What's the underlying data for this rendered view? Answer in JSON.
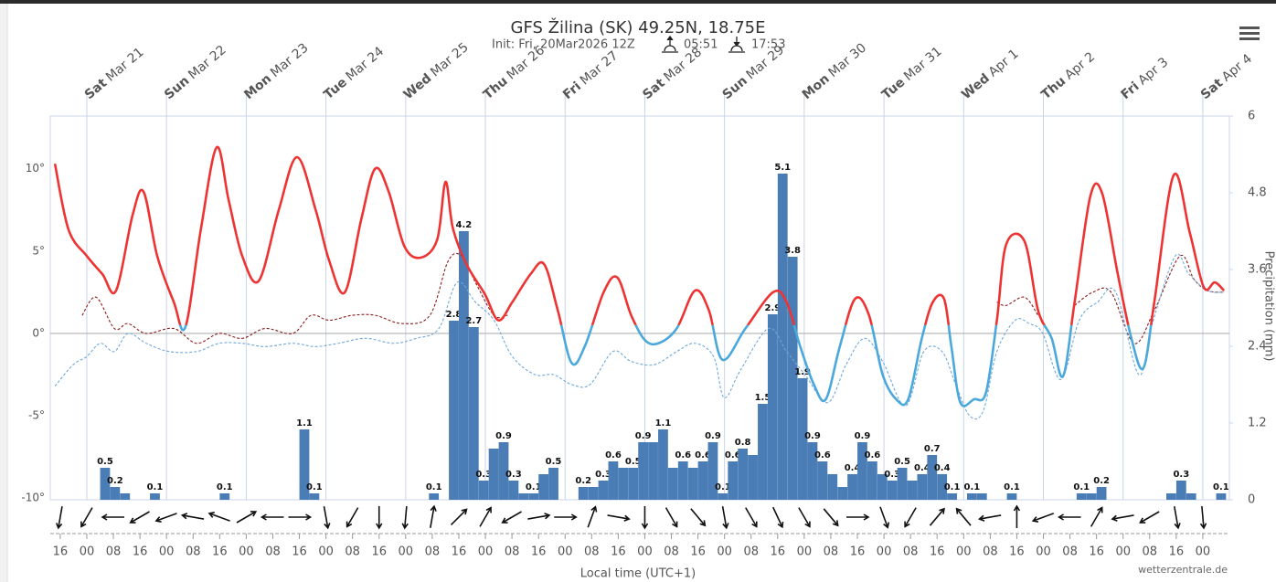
{
  "header": {
    "title": "GFS Žilina (SK) 49.25N, 18.75E",
    "init": "Init: Fri, 20Mar2026 12Z",
    "sunrise": "05:51",
    "sunset": "17:53"
  },
  "chart_data": {
    "type": "meteogram",
    "xlim": [
      -11,
      344
    ],
    "xticks": [
      {
        "value": -8,
        "label": "16"
      },
      {
        "value": 0,
        "label": "00"
      },
      {
        "value": 8,
        "label": "08"
      },
      {
        "value": 16,
        "label": "16"
      },
      {
        "value": 24,
        "label": "00"
      },
      {
        "value": 32,
        "label": "08"
      },
      {
        "value": 40,
        "label": "16"
      },
      {
        "value": 48,
        "label": "00"
      },
      {
        "value": 56,
        "label": "08"
      },
      {
        "value": 64,
        "label": "16"
      },
      {
        "value": 72,
        "label": "00"
      },
      {
        "value": 80,
        "label": "08"
      },
      {
        "value": 88,
        "label": "16"
      },
      {
        "value": 96,
        "label": "00"
      },
      {
        "value": 104,
        "label": "08"
      },
      {
        "value": 112,
        "label": "16"
      },
      {
        "value": 120,
        "label": "00"
      },
      {
        "value": 128,
        "label": "08"
      },
      {
        "value": 136,
        "label": "16"
      },
      {
        "value": 144,
        "label": "00"
      },
      {
        "value": 152,
        "label": "08"
      },
      {
        "value": 160,
        "label": "16"
      },
      {
        "value": 168,
        "label": "00"
      },
      {
        "value": 176,
        "label": "08"
      },
      {
        "value": 184,
        "label": "16"
      },
      {
        "value": 192,
        "label": "00"
      },
      {
        "value": 200,
        "label": "08"
      },
      {
        "value": 208,
        "label": "16"
      },
      {
        "value": 216,
        "label": "00"
      },
      {
        "value": 224,
        "label": "08"
      },
      {
        "value": 232,
        "label": "16"
      },
      {
        "value": 240,
        "label": "00"
      },
      {
        "value": 248,
        "label": "08"
      },
      {
        "value": 256,
        "label": "16"
      },
      {
        "value": 264,
        "label": "00"
      },
      {
        "value": 272,
        "label": "08"
      },
      {
        "value": 280,
        "label": "16"
      },
      {
        "value": 288,
        "label": "00"
      },
      {
        "value": 296,
        "label": "08"
      },
      {
        "value": 304,
        "label": "16"
      },
      {
        "value": 312,
        "label": "00"
      },
      {
        "value": 320,
        "label": "08"
      },
      {
        "value": 328,
        "label": "16"
      },
      {
        "value": 336,
        "label": "00"
      }
    ],
    "x_label": "Local time (UTC+1)",
    "days": [
      {
        "value": 0,
        "weekday": "Sat",
        "date": "Mar 21"
      },
      {
        "value": 24,
        "weekday": "Sun",
        "date": "Mar 22"
      },
      {
        "value": 48,
        "weekday": "Mon",
        "date": "Mar 23"
      },
      {
        "value": 72,
        "weekday": "Tue",
        "date": "Mar 24"
      },
      {
        "value": 96,
        "weekday": "Wed",
        "date": "Mar 25"
      },
      {
        "value": 120,
        "weekday": "Thu",
        "date": "Mar 26"
      },
      {
        "value": 144,
        "weekday": "Fri",
        "date": "Mar 27"
      },
      {
        "value": 168,
        "weekday": "Sat",
        "date": "Mar 28"
      },
      {
        "value": 192,
        "weekday": "Sun",
        "date": "Mar 29"
      },
      {
        "value": 216,
        "weekday": "Mon",
        "date": "Mar 30"
      },
      {
        "value": 240,
        "weekday": "Tue",
        "date": "Mar 31"
      },
      {
        "value": 264,
        "weekday": "Wed",
        "date": "Apr 1"
      },
      {
        "value": 288,
        "weekday": "Thu",
        "date": "Apr 2"
      },
      {
        "value": 312,
        "weekday": "Fri",
        "date": "Apr 3"
      },
      {
        "value": 336,
        "weekday": "Sat",
        "date": "Apr 4"
      }
    ],
    "ylim": [
      -10.1,
      13.2
    ],
    "yticks": [
      {
        "value": -10,
        "label": "-10°"
      },
      {
        "value": -5,
        "label": "-5°"
      },
      {
        "value": 0,
        "label": "0°"
      },
      {
        "value": 5,
        "label": "5°"
      },
      {
        "value": 10,
        "label": "10°"
      }
    ],
    "y2lim": [
      0,
      6
    ],
    "y2ticks": [
      0,
      1.2,
      2.4,
      3.6,
      4.8,
      6
    ],
    "y2_label": "Precipitation (mm)",
    "series": [
      {
        "type": "line",
        "color": "#ee3333",
        "color_below": "#4aa8dc",
        "threshold": 0.5,
        "x": [
          -9.6,
          -5.5,
          0.0,
          4.7,
          8.8,
          13.8,
          17.1,
          21.2,
          26.2,
          29.7,
          34.4,
          39.1,
          42.7,
          46.8,
          51.8,
          57.8,
          63.3,
          68.9,
          73.0,
          77.7,
          82.6,
          86.8,
          90.9,
          95.6,
          100.5,
          105.5,
          108.0,
          110.2,
          114.3,
          119.8,
          123.9,
          128.1,
          133.6,
          137.7,
          141.8,
          146.0,
          150.1,
          155.6,
          159.7,
          163.9,
          168.0,
          172.1,
          177.6,
          183.1,
          187.3,
          191.4,
          198.3,
          206.6,
          210.7,
          214.8,
          218.9,
          222.5,
          226.7,
          231.3,
          235.5,
          239.6,
          243.7,
          247.3,
          251.4,
          254.7,
          258.1,
          260.3,
          263.0,
          267.1,
          270.7,
          274.0,
          276.8,
          282.3,
          286.4,
          290.5,
          293.9,
          297.4,
          302.1,
          305.7,
          310.4,
          314.5,
          318.1,
          321.4,
          327.2,
          332.1,
          336.3,
          339.6,
          342.4
        ],
        "values": [
          10.3,
          6.3,
          4.7,
          3.6,
          2.6,
          7.2,
          8.6,
          4.7,
          1.9,
          0.4,
          6.4,
          11.3,
          8.1,
          4.7,
          3.2,
          7.5,
          10.7,
          7.5,
          4.4,
          2.5,
          6.9,
          10.0,
          8.6,
          5.3,
          4.6,
          5.7,
          9.2,
          6.4,
          4.2,
          2.4,
          0.8,
          1.9,
          3.6,
          4.2,
          1.4,
          -1.8,
          -0.7,
          2.5,
          3.4,
          1.1,
          -0.4,
          -0.6,
          0.3,
          2.6,
          1.4,
          -1.6,
          0.3,
          2.5,
          1.9,
          -0.8,
          -3.1,
          -4.0,
          -0.8,
          2.1,
          1.1,
          -2.5,
          -4.0,
          -4.0,
          -0.3,
          1.9,
          2.1,
          -0.8,
          -4.2,
          -4.0,
          -3.6,
          0.8,
          5.4,
          5.6,
          1.4,
          -0.3,
          -2.6,
          1.9,
          8.3,
          8.5,
          3.6,
          -0.3,
          -2.1,
          1.9,
          9.6,
          6.1,
          2.8,
          3.1,
          2.6
        ]
      },
      {
        "type": "line",
        "dash": true,
        "color": "#8b1c1c",
        "x": [
          -1.4,
          2.8,
          8.3,
          12.4,
          17.9,
          26.2,
          33.0,
          39.9,
          46.8,
          53.7,
          62.0,
          67.5,
          73.0,
          79.9,
          86.8,
          95.0,
          103.3,
          108.8,
          112.9,
          117.0,
          122.6,
          126.7,
          200.0,
          274.0,
          276.8,
          282.3,
          286.4,
          290.0,
          297.4,
          302.9,
          308.4,
          315.3,
          321.4,
          329.1,
          333.3,
          337.4,
          342.4
        ],
        "values": [
          1.1,
          2.2,
          0.3,
          0.6,
          0.0,
          0.3,
          -0.6,
          0.0,
          -0.3,
          0.3,
          0.0,
          1.1,
          0.8,
          1.1,
          1.1,
          0.6,
          1.1,
          4.4,
          4.7,
          3.1,
          1.1,
          1.1,
          null,
          1.9,
          1.7,
          2.2,
          1.1,
          null,
          1.7,
          2.5,
          2.5,
          -0.6,
          1.4,
          4.7,
          3.3,
          2.6,
          2.5
        ]
      },
      {
        "type": "line",
        "dash": true,
        "color": "#6fa8dc",
        "x": [
          -9.6,
          -4.1,
          0.0,
          4.1,
          8.3,
          12.4,
          17.9,
          24.8,
          33.0,
          39.9,
          46.8,
          53.7,
          62.0,
          68.9,
          75.7,
          84.0,
          92.3,
          99.1,
          106.0,
          111.5,
          117.0,
          122.6,
          128.1,
          134.9,
          140.5,
          146.0,
          151.5,
          158.4,
          163.9,
          170.8,
          177.6,
          183.1,
          188.7,
          191.9,
          196.9,
          205.2,
          210.7,
          216.2,
          223.1,
          228.6,
          234.1,
          239.6,
          246.5,
          252.0,
          257.5,
          261.6,
          265.8,
          269.9,
          274.0,
          279.5,
          283.7,
          287.8,
          293.3,
          298.8,
          304.3,
          309.8,
          316.7,
          320.8,
          327.7,
          331.8,
          337.4,
          342.4
        ],
        "values": [
          -3.2,
          -1.9,
          -1.4,
          -0.6,
          -1.1,
          0.0,
          -0.6,
          -1.1,
          -1.1,
          -0.6,
          -0.6,
          -0.8,
          -0.6,
          -0.8,
          -0.6,
          -0.3,
          -0.6,
          -0.3,
          0.3,
          3.1,
          1.9,
          0.8,
          -1.4,
          -2.5,
          -2.5,
          -3.1,
          -3.1,
          -1.1,
          -1.7,
          -1.9,
          -1.1,
          -0.6,
          -1.4,
          -3.9,
          -2.2,
          0.3,
          -1.1,
          -2.5,
          -4.2,
          -1.9,
          -0.3,
          -1.7,
          -4.4,
          -1.1,
          -1.1,
          -3.1,
          -5.0,
          -4.7,
          -1.1,
          0.8,
          0.6,
          0.0,
          -2.8,
          0.8,
          1.9,
          2.5,
          -2.5,
          0.6,
          4.7,
          3.6,
          2.6,
          2.5
        ]
      },
      {
        "type": "bar",
        "axis": "y2",
        "color": "#4a7db5",
        "x": [
          5.5,
          8.5,
          11.5,
          20.5,
          41.5,
          65.5,
          68.5,
          104.5,
          110.5,
          113.5,
          116.5,
          119.5,
          122.5,
          125.5,
          128.5,
          131.5,
          134.5,
          137.5,
          140.5,
          149.5,
          152.5,
          155.5,
          158.5,
          161.5,
          164.5,
          167.5,
          170.5,
          173.5,
          176.5,
          179.5,
          182.5,
          185.5,
          188.5,
          191.5,
          194.5,
          197.5,
          200.5,
          203.5,
          206.5,
          209.5,
          212.5,
          215.5,
          218.5,
          221.5,
          224.5,
          227.5,
          230.5,
          233.5,
          236.5,
          239.5,
          242.5,
          245.5,
          248.5,
          251.5,
          254.5,
          257.5,
          260.5,
          266.5,
          269.5,
          278.5,
          299.5,
          302.5,
          305.5,
          326.5,
          329.5,
          332.5,
          341.5
        ],
        "values": [
          0.5,
          0.2,
          0.1,
          0.1,
          0.1,
          1.1,
          0.1,
          0.1,
          2.8,
          4.2,
          2.7,
          0.3,
          0.8,
          0.9,
          0.3,
          0.1,
          0.1,
          0.4,
          0.5,
          0.2,
          0.2,
          0.3,
          0.6,
          0.5,
          0.5,
          0.9,
          0.9,
          1.1,
          0.5,
          0.6,
          0.5,
          0.6,
          0.9,
          0.1,
          0.6,
          0.8,
          0.7,
          1.5,
          2.9,
          5.1,
          3.8,
          1.9,
          0.9,
          0.6,
          0.4,
          0.2,
          0.4,
          0.9,
          0.6,
          0.4,
          0.3,
          0.5,
          0.3,
          0.4,
          0.7,
          0.4,
          0.1,
          0.1,
          0.1,
          0.1,
          0.1,
          0.1,
          0.2,
          0.1,
          0.3,
          0.1,
          0.1
        ],
        "value_labels": [
          "0.5",
          "0.2",
          null,
          "0.1",
          "0.1",
          "1.1",
          "0.1",
          "0.1",
          "2.8",
          "4.2",
          "2.7",
          "0.3",
          null,
          "0.9",
          "0.3",
          null,
          "0.1",
          null,
          "0.5",
          "0.2",
          null,
          "0.3",
          "0.6",
          null,
          "0.5",
          "0.9",
          null,
          "1.1",
          null,
          "0.6",
          null,
          "0.6",
          "0.9",
          "0.1",
          "0.6",
          "0.8",
          null,
          "1.5",
          "2.9",
          "5.1",
          "3.8",
          "1.9",
          "0.9",
          "0.6",
          null,
          null,
          "0.4",
          "0.9",
          "0.6",
          null,
          "0.3",
          "0.5",
          null,
          "0.4",
          "0.7",
          "0.4",
          "0.1",
          "0.1",
          null,
          "0.1",
          "0.1",
          null,
          "0.2",
          null,
          "0.3",
          null,
          "0.1"
        ]
      }
    ],
    "wind_direction": [
      190,
      210,
      270,
      240,
      250,
      280,
      290,
      60,
      270,
      90,
      170,
      210,
      180,
      185,
      10,
      45,
      30,
      240,
      80,
      90,
      20,
      100,
      180,
      150,
      140,
      170,
      150,
      155,
      150,
      140,
      90,
      160,
      210,
      40,
      320,
      260,
      0,
      250,
      270,
      30,
      260,
      240,
      170,
      175
    ]
  },
  "credit": "wetterzentrale.de"
}
